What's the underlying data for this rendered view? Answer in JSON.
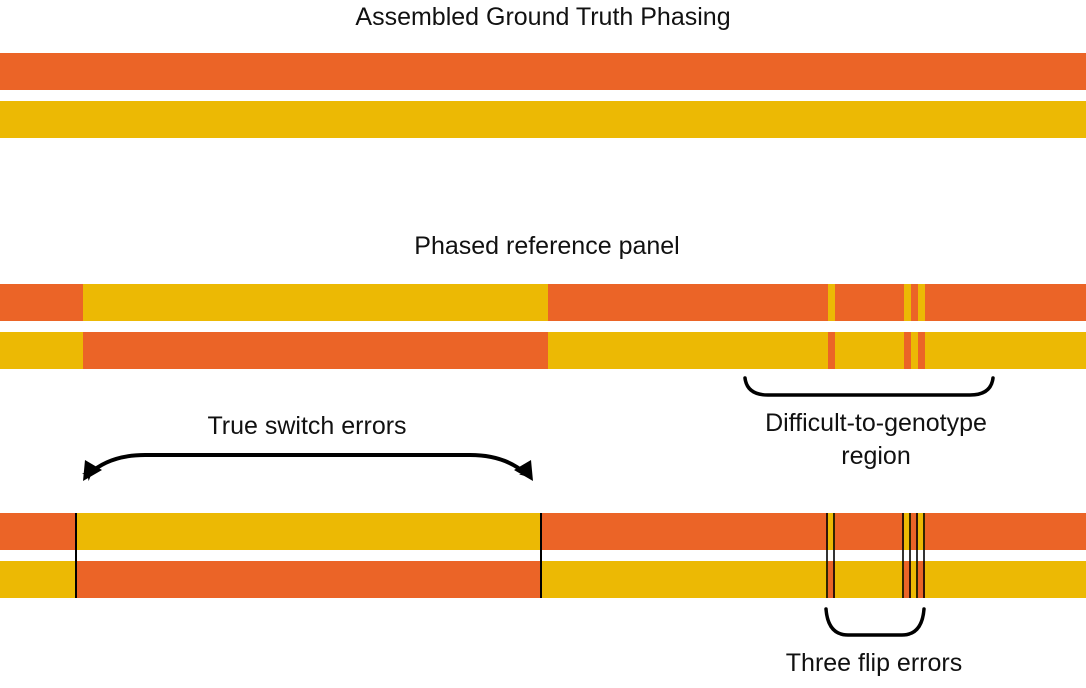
{
  "titles": {
    "ground_truth": "Assembled Ground Truth Phasing",
    "reference_panel": "Phased reference panel"
  },
  "annotations": {
    "switch_errors": "True switch errors",
    "difficult_region": "Difficult-to-genotype region",
    "flip_errors": "Three flip errors"
  },
  "colors": {
    "haplotype_a": "#EB6427",
    "haplotype_b": "#ECB904",
    "boundary": "#000000",
    "text": "#111111"
  },
  "tracks": {
    "ground_truth": [
      [
        "a"
      ],
      [
        "b"
      ]
    ],
    "reference_panel": [
      [
        "a",
        "b",
        "a",
        "b",
        "a",
        "b",
        "a",
        "b",
        "a"
      ],
      [
        "b",
        "a",
        "b",
        "a",
        "b",
        "a",
        "b",
        "a",
        "b"
      ]
    ],
    "comparison": [
      [
        "a",
        "b",
        "a",
        "b",
        "a",
        "b",
        "a",
        "b",
        "a"
      ],
      [
        "b",
        "a",
        "b",
        "a",
        "b",
        "a",
        "b",
        "a",
        "b"
      ]
    ]
  },
  "error_boundaries": {
    "switch": 2,
    "flip": 6
  }
}
